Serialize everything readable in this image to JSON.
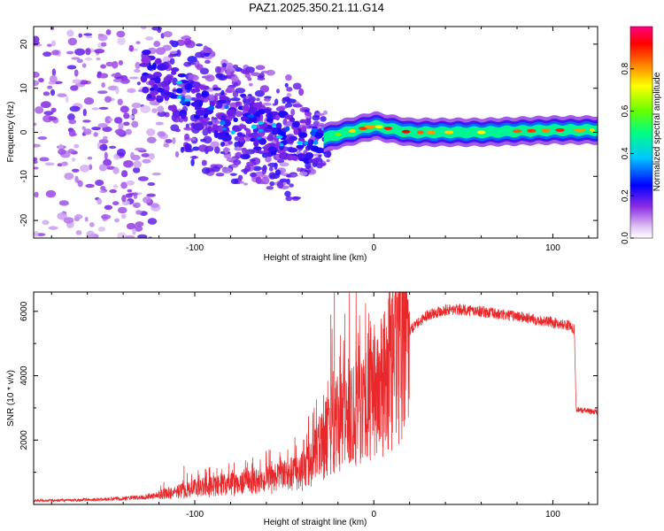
{
  "title": "PAZ1.2025.350.21.11.G14",
  "chart_data": [
    {
      "type": "heatmap",
      "xlabel": "Height of straight line (km)",
      "ylabel": "Frequency (Hz)",
      "xlim": [
        -190,
        125
      ],
      "ylim": [
        -24,
        24
      ],
      "xticks": [
        -100,
        0,
        100
      ],
      "xtick_labels": [
        "-100",
        "0",
        "100"
      ],
      "yticks": [
        -20,
        -10,
        0,
        10,
        20
      ],
      "ytick_labels": [
        "-20",
        "-10",
        "0",
        "10",
        "20"
      ],
      "ridge": [
        {
          "x": -130,
          "y": 14
        },
        {
          "x": -110,
          "y": 9
        },
        {
          "x": -90,
          "y": 4
        },
        {
          "x": -70,
          "y": 2
        },
        {
          "x": -50,
          "y": -1
        },
        {
          "x": -35,
          "y": -2
        },
        {
          "x": -25,
          "y": -1
        },
        {
          "x": -10,
          "y": 0.5
        },
        {
          "x": 0,
          "y": 1.5
        },
        {
          "x": 20,
          "y": 0
        },
        {
          "x": 60,
          "y": 0
        },
        {
          "x": 100,
          "y": 0.5
        },
        {
          "x": 125,
          "y": 0.5
        }
      ],
      "colorbar": {
        "label": "Normalized spectral amplitude",
        "range": [
          0,
          1
        ],
        "ticks": [
          0.0,
          0.2,
          0.4,
          0.6,
          0.8
        ],
        "tick_labels": [
          "0.0",
          "0.2",
          "0.4",
          "0.6",
          "0.8"
        ]
      }
    },
    {
      "type": "line",
      "xlabel": "Height of straight line (km)",
      "ylabel": "SNR (10 * v/v)",
      "xlim": [
        -190,
        125
      ],
      "ylim": [
        0,
        6600
      ],
      "xticks": [
        -100,
        0,
        100
      ],
      "xtick_labels": [
        "-100",
        "0",
        "100"
      ],
      "yticks": [
        2000,
        4000,
        6000
      ],
      "ytick_labels": [
        "2000",
        "4000",
        "6000"
      ],
      "series": [
        {
          "name": "SNR",
          "color": "#e8282a",
          "x": [
            -190,
            -170,
            -150,
            -130,
            -120,
            -110,
            -100,
            -90,
            -80,
            -70,
            -60,
            -50,
            -40,
            -35,
            -30,
            -25,
            -20,
            -15,
            -10,
            -5,
            0,
            5,
            10,
            20,
            30,
            40,
            50,
            60,
            70,
            80,
            90,
            100,
            110,
            112,
            113,
            120,
            125
          ],
          "y": [
            120,
            130,
            160,
            220,
            300,
            400,
            520,
            560,
            640,
            680,
            760,
            880,
            1050,
            1300,
            1700,
            2300,
            2500,
            2800,
            3000,
            3300,
            3500,
            3700,
            4200,
            5400,
            5900,
            6050,
            6050,
            6000,
            5900,
            5850,
            5750,
            5650,
            5550,
            5450,
            2950,
            2900,
            2880
          ],
          "spikes": [
            {
              "x": -106,
              "y": 1200
            },
            {
              "x": -92,
              "y": 1150
            },
            {
              "x": -78,
              "y": 1300
            },
            {
              "x": -57,
              "y": 1350
            },
            {
              "x": -40,
              "y": 1600
            },
            {
              "x": -28,
              "y": 3400
            },
            {
              "x": -24,
              "y": 5900
            },
            {
              "x": -22,
              "y": 6600
            },
            {
              "x": -19,
              "y": 4600
            },
            {
              "x": -10,
              "y": 4800
            },
            {
              "x": -2,
              "y": 5700
            },
            {
              "x": 5,
              "y": 4100
            },
            {
              "x": 10,
              "y": 6400
            },
            {
              "x": 14,
              "y": 5300
            }
          ]
        }
      ]
    }
  ]
}
